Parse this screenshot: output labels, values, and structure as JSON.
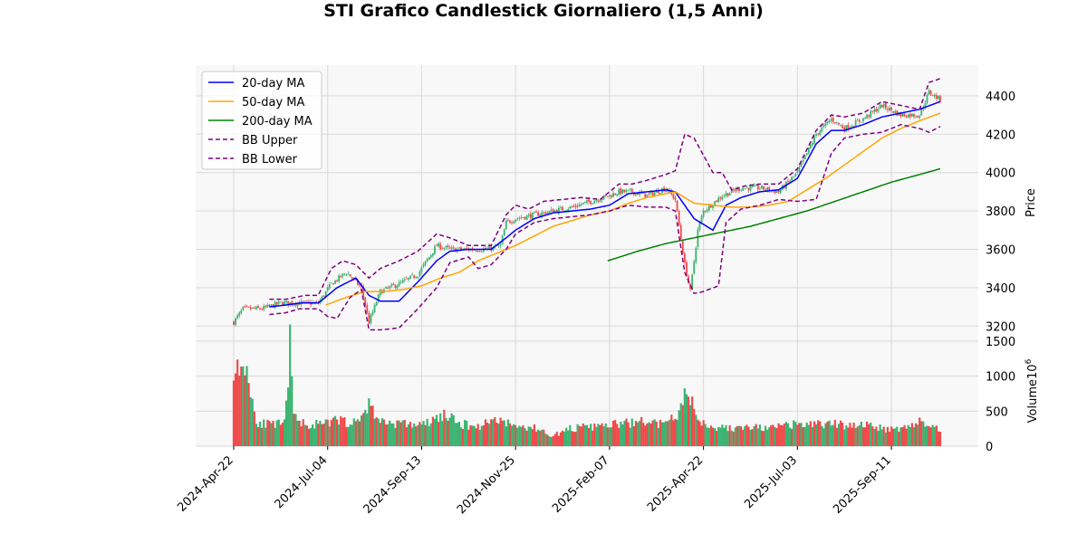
{
  "chart_data": {
    "type": "candlestick",
    "title": "STI Grafico Candlestick Giornaliero (1,5 Anni)",
    "price_panel": {
      "ylabel": "Price",
      "ylim": [
        3140,
        4560
      ],
      "yticks": [
        3200,
        3400,
        3600,
        3800,
        4000,
        4200,
        4400
      ],
      "grid": true,
      "legend_position": "upper-left"
    },
    "volume_panel": {
      "ylabel": "Volume",
      "ylabel_exponent": "6",
      "ylim": [
        0,
        1550
      ],
      "yticks": [
        0,
        500,
        1000,
        1500
      ],
      "grid": true
    },
    "xlabel": "",
    "x_ticks": [
      "2024-Apr-22",
      "2024-Jul-04",
      "2024-Sep-13",
      "2024-Nov-25",
      "2025-Feb-07",
      "2025-Apr-22",
      "2025-Jul-03",
      "2025-Sep-11"
    ],
    "x_tick_index": [
      0,
      50,
      100,
      150,
      200,
      250,
      300,
      350
    ],
    "n_days": 377,
    "up_color": "#3cb371",
    "down_color": "#f04a4a",
    "close_anchors": [
      [
        0,
        3220
      ],
      [
        5,
        3290
      ],
      [
        15,
        3290
      ],
      [
        25,
        3320
      ],
      [
        35,
        3320
      ],
      [
        45,
        3320
      ],
      [
        52,
        3420
      ],
      [
        60,
        3480
      ],
      [
        68,
        3400
      ],
      [
        72,
        3220
      ],
      [
        78,
        3380
      ],
      [
        88,
        3420
      ],
      [
        98,
        3470
      ],
      [
        108,
        3620
      ],
      [
        115,
        3600
      ],
      [
        125,
        3600
      ],
      [
        135,
        3600
      ],
      [
        142,
        3620
      ],
      [
        145,
        3740
      ],
      [
        150,
        3760
      ],
      [
        160,
        3780
      ],
      [
        170,
        3800
      ],
      [
        180,
        3820
      ],
      [
        190,
        3850
      ],
      [
        200,
        3880
      ],
      [
        205,
        3900
      ],
      [
        212,
        3900
      ],
      [
        220,
        3880
      ],
      [
        230,
        3920
      ],
      [
        235,
        3860
      ],
      [
        240,
        3520
      ],
      [
        243,
        3380
      ],
      [
        247,
        3700
      ],
      [
        250,
        3800
      ],
      [
        255,
        3840
      ],
      [
        260,
        3880
      ],
      [
        270,
        3920
      ],
      [
        280,
        3920
      ],
      [
        290,
        3900
      ],
      [
        300,
        4000
      ],
      [
        310,
        4200
      ],
      [
        318,
        4280
      ],
      [
        325,
        4230
      ],
      [
        335,
        4280
      ],
      [
        345,
        4350
      ],
      [
        355,
        4300
      ],
      [
        365,
        4300
      ],
      [
        370,
        4420
      ],
      [
        376,
        4380
      ]
    ],
    "volume_anchors": [
      [
        0,
        1200
      ],
      [
        3,
        1000
      ],
      [
        5,
        1300
      ],
      [
        7,
        1100
      ],
      [
        9,
        800
      ],
      [
        12,
        350
      ],
      [
        20,
        300
      ],
      [
        27,
        320
      ],
      [
        30,
        1450
      ],
      [
        32,
        400
      ],
      [
        40,
        300
      ],
      [
        50,
        320
      ],
      [
        55,
        380
      ],
      [
        65,
        320
      ],
      [
        72,
        600
      ],
      [
        78,
        350
      ],
      [
        90,
        320
      ],
      [
        100,
        300
      ],
      [
        105,
        350
      ],
      [
        112,
        450
      ],
      [
        120,
        320
      ],
      [
        130,
        280
      ],
      [
        140,
        400
      ],
      [
        150,
        280
      ],
      [
        160,
        260
      ],
      [
        170,
        150
      ],
      [
        180,
        260
      ],
      [
        190,
        270
      ],
      [
        200,
        300
      ],
      [
        210,
        330
      ],
      [
        220,
        350
      ],
      [
        230,
        300
      ],
      [
        238,
        520
      ],
      [
        240,
        880
      ],
      [
        243,
        650
      ],
      [
        248,
        350
      ],
      [
        255,
        280
      ],
      [
        265,
        250
      ],
      [
        275,
        270
      ],
      [
        285,
        250
      ],
      [
        295,
        300
      ],
      [
        305,
        310
      ],
      [
        315,
        320
      ],
      [
        325,
        300
      ],
      [
        335,
        320
      ],
      [
        345,
        250
      ],
      [
        355,
        260
      ],
      [
        360,
        300
      ],
      [
        365,
        350
      ],
      [
        370,
        270
      ],
      [
        376,
        260
      ]
    ],
    "series": [
      {
        "name": "20-day MA",
        "color": "#0000ff",
        "dash": false,
        "start": 19,
        "anchors": [
          [
            19,
            3300
          ],
          [
            28,
            3310
          ],
          [
            35,
            3320
          ],
          [
            45,
            3320
          ],
          [
            55,
            3400
          ],
          [
            65,
            3450
          ],
          [
            72,
            3360
          ],
          [
            78,
            3330
          ],
          [
            88,
            3330
          ],
          [
            98,
            3430
          ],
          [
            108,
            3540
          ],
          [
            115,
            3590
          ],
          [
            125,
            3600
          ],
          [
            137,
            3600
          ],
          [
            145,
            3660
          ],
          [
            150,
            3700
          ],
          [
            160,
            3760
          ],
          [
            170,
            3790
          ],
          [
            180,
            3800
          ],
          [
            190,
            3810
          ],
          [
            200,
            3830
          ],
          [
            210,
            3890
          ],
          [
            220,
            3900
          ],
          [
            230,
            3910
          ],
          [
            235,
            3900
          ],
          [
            245,
            3760
          ],
          [
            255,
            3700
          ],
          [
            262,
            3830
          ],
          [
            270,
            3870
          ],
          [
            280,
            3900
          ],
          [
            290,
            3910
          ],
          [
            300,
            3970
          ],
          [
            310,
            4150
          ],
          [
            318,
            4220
          ],
          [
            325,
            4220
          ],
          [
            335,
            4250
          ],
          [
            345,
            4290
          ],
          [
            355,
            4310
          ],
          [
            365,
            4330
          ],
          [
            376,
            4370
          ]
        ]
      },
      {
        "name": "50-day MA",
        "color": "#ffa500",
        "dash": false,
        "start": 49,
        "anchors": [
          [
            49,
            3310
          ],
          [
            60,
            3350
          ],
          [
            70,
            3380
          ],
          [
            80,
            3380
          ],
          [
            90,
            3390
          ],
          [
            100,
            3410
          ],
          [
            110,
            3450
          ],
          [
            120,
            3480
          ],
          [
            130,
            3540
          ],
          [
            140,
            3580
          ],
          [
            150,
            3620
          ],
          [
            160,
            3670
          ],
          [
            170,
            3720
          ],
          [
            180,
            3750
          ],
          [
            190,
            3780
          ],
          [
            200,
            3800
          ],
          [
            210,
            3840
          ],
          [
            220,
            3870
          ],
          [
            230,
            3890
          ],
          [
            235,
            3900
          ],
          [
            245,
            3840
          ],
          [
            255,
            3830
          ],
          [
            265,
            3820
          ],
          [
            275,
            3820
          ],
          [
            285,
            3830
          ],
          [
            295,
            3850
          ],
          [
            305,
            3910
          ],
          [
            315,
            3970
          ],
          [
            325,
            4040
          ],
          [
            335,
            4110
          ],
          [
            345,
            4180
          ],
          [
            355,
            4230
          ],
          [
            365,
            4270
          ],
          [
            376,
            4310
          ]
        ]
      },
      {
        "name": "200-day MA",
        "color": "#008000",
        "dash": false,
        "start": 199,
        "anchors": [
          [
            199,
            3540
          ],
          [
            215,
            3590
          ],
          [
            230,
            3630
          ],
          [
            245,
            3660
          ],
          [
            260,
            3690
          ],
          [
            275,
            3720
          ],
          [
            290,
            3760
          ],
          [
            305,
            3800
          ],
          [
            320,
            3850
          ],
          [
            335,
            3900
          ],
          [
            350,
            3950
          ],
          [
            365,
            3990
          ],
          [
            376,
            4020
          ]
        ]
      },
      {
        "name": "BB Upper",
        "color": "#800080",
        "dash": true,
        "start": 19,
        "anchors": [
          [
            19,
            3340
          ],
          [
            28,
            3340
          ],
          [
            38,
            3360
          ],
          [
            45,
            3360
          ],
          [
            52,
            3500
          ],
          [
            58,
            3540
          ],
          [
            65,
            3520
          ],
          [
            72,
            3450
          ],
          [
            78,
            3500
          ],
          [
            88,
            3540
          ],
          [
            98,
            3590
          ],
          [
            108,
            3680
          ],
          [
            115,
            3660
          ],
          [
            125,
            3620
          ],
          [
            137,
            3620
          ],
          [
            145,
            3780
          ],
          [
            150,
            3830
          ],
          [
            157,
            3810
          ],
          [
            165,
            3850
          ],
          [
            175,
            3860
          ],
          [
            185,
            3870
          ],
          [
            195,
            3860
          ],
          [
            205,
            3940
          ],
          [
            212,
            3940
          ],
          [
            220,
            3960
          ],
          [
            230,
            3990
          ],
          [
            235,
            4010
          ],
          [
            240,
            4200
          ],
          [
            245,
            4180
          ],
          [
            255,
            4000
          ],
          [
            260,
            4000
          ],
          [
            265,
            3910
          ],
          [
            272,
            3930
          ],
          [
            280,
            3940
          ],
          [
            290,
            3940
          ],
          [
            300,
            4020
          ],
          [
            310,
            4220
          ],
          [
            318,
            4300
          ],
          [
            325,
            4290
          ],
          [
            335,
            4310
          ],
          [
            345,
            4370
          ],
          [
            355,
            4350
          ],
          [
            365,
            4330
          ],
          [
            370,
            4470
          ],
          [
            376,
            4490
          ]
        ]
      },
      {
        "name": "BB Lower",
        "color": "#800080",
        "dash": true,
        "start": 19,
        "anchors": [
          [
            19,
            3260
          ],
          [
            28,
            3270
          ],
          [
            35,
            3290
          ],
          [
            45,
            3290
          ],
          [
            50,
            3250
          ],
          [
            55,
            3240
          ],
          [
            62,
            3350
          ],
          [
            68,
            3390
          ],
          [
            72,
            3180
          ],
          [
            78,
            3180
          ],
          [
            88,
            3190
          ],
          [
            98,
            3290
          ],
          [
            108,
            3400
          ],
          [
            115,
            3530
          ],
          [
            125,
            3560
          ],
          [
            130,
            3500
          ],
          [
            137,
            3520
          ],
          [
            145,
            3600
          ],
          [
            150,
            3680
          ],
          [
            160,
            3740
          ],
          [
            170,
            3760
          ],
          [
            180,
            3770
          ],
          [
            190,
            3780
          ],
          [
            200,
            3800
          ],
          [
            210,
            3830
          ],
          [
            220,
            3820
          ],
          [
            230,
            3820
          ],
          [
            235,
            3800
          ],
          [
            240,
            3480
          ],
          [
            245,
            3370
          ],
          [
            250,
            3380
          ],
          [
            258,
            3410
          ],
          [
            262,
            3740
          ],
          [
            270,
            3810
          ],
          [
            280,
            3830
          ],
          [
            290,
            3860
          ],
          [
            300,
            3850
          ],
          [
            310,
            3860
          ],
          [
            318,
            4100
          ],
          [
            325,
            4180
          ],
          [
            335,
            4200
          ],
          [
            345,
            4210
          ],
          [
            355,
            4250
          ],
          [
            365,
            4230
          ],
          [
            370,
            4210
          ],
          [
            376,
            4240
          ]
        ]
      }
    ]
  }
}
